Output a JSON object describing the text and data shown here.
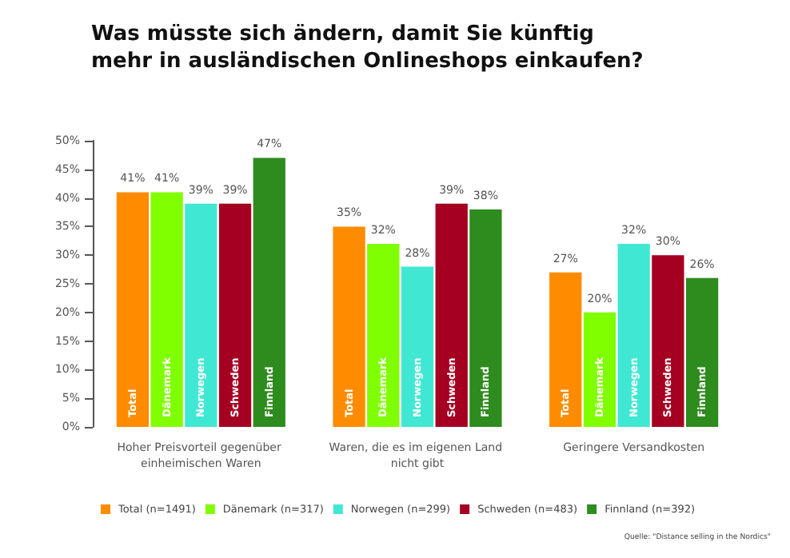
{
  "chart_data": {
    "type": "bar",
    "title": "Was müsste sich ändern, damit Sie künftig mehr in ausländischen Onlineshops einkaufen?",
    "categories": [
      "Hoher Preisvorteil gegenüber einheimischen Waren",
      "Waren, die es im eigenen Land nicht gibt",
      "Geringere Versandkosten"
    ],
    "series": [
      {
        "name": "Total (n=1491)",
        "color": "#ff8c00",
        "values": [
          41,
          35,
          27
        ]
      },
      {
        "name": "Dänemark (n=317)",
        "color": "#80ff00",
        "values": [
          41,
          32,
          20
        ]
      },
      {
        "name": "Norwegen (n=299)",
        "color": "#40e8d4",
        "values": [
          39,
          28,
          32
        ]
      },
      {
        "name": "Schweden (n=483)",
        "color": "#a50021",
        "values": [
          39,
          39,
          30
        ]
      },
      {
        "name": "Finnland (n=392)",
        "color": "#2e8b1e",
        "values": [
          47,
          38,
          26
        ]
      }
    ],
    "ylim": [
      0,
      50
    ],
    "yticks": [
      {
        "value": 0,
        "label": "0%"
      },
      {
        "value": 5,
        "label": "5%"
      },
      {
        "value": 10,
        "label": "10%"
      },
      {
        "value": 15,
        "label": "15%"
      },
      {
        "value": 20,
        "label": "20%"
      },
      {
        "value": 25,
        "label": "25%"
      },
      {
        "value": 30,
        "label": "30%"
      },
      {
        "value": 35,
        "label": "35%"
      },
      {
        "value": 40,
        "label": "40%"
      },
      {
        "value": 45,
        "label": "45%"
      },
      {
        "value": 50,
        "label": "50%"
      }
    ],
    "value_labels": [
      [
        "41%",
        "35%",
        "27%"
      ],
      [
        "41%",
        "32%",
        "20%"
      ],
      [
        "39%",
        "28%",
        "32%"
      ],
      [
        "39%",
        "39%",
        "30%"
      ],
      [
        "47%",
        "38%",
        "26%"
      ]
    ],
    "grid": false,
    "legend": "bottom left",
    "annotations": [
      "Total",
      "Dänemark",
      "Norwegen",
      "Schweden",
      "Finnland",
      "Total",
      "Dänemark",
      "Norwegen",
      "Schweden",
      "Finnland",
      "Total",
      "Dänemark",
      "Norwegen",
      "Schweden",
      "Finnland",
      "Quelle: \"Distance selling in the Nordics\""
    ]
  }
}
